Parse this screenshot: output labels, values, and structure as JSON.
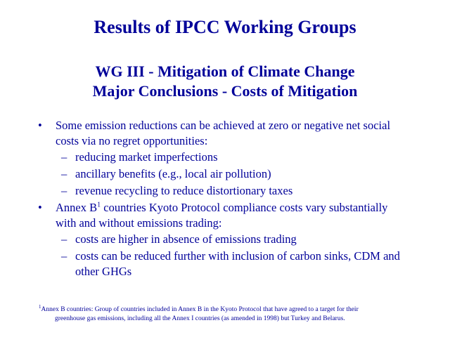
{
  "slide": {
    "title": "Results of IPCC Working Groups",
    "subtitle_line1": "WG III - Mitigation of Climate Change",
    "subtitle_line2": "Major Conclusions - Costs of Mitigation",
    "bullets": [
      {
        "text": "Some emission reductions can be achieved at zero or negative net social costs via no regret opportunities:",
        "subs": [
          "reducing market imperfections",
          "ancillary benefits (e.g., local air pollution)",
          "revenue recycling to reduce distortionary taxes"
        ]
      },
      {
        "text_before": "Annex B",
        "superscript": "1",
        "text_after": " countries Kyoto Protocol compliance costs vary substantially with and without emissions trading:",
        "subs": [
          "costs are higher in absence of emissions trading",
          "costs can be reduced further with inclusion of carbon sinks, CDM and other GHGs"
        ]
      }
    ],
    "bullet_glyph": "•",
    "sub_glyph": "–",
    "footnote": {
      "marker": "1",
      "line1": "Annex B countries: Group of countries included in Annex B in the Kyoto Protocol that have agreed to a target for their",
      "line2": "greenhouse gas emissions, including all the Annex I countries (as amended in 1998) but Turkey and Belarus."
    },
    "colors": {
      "text": "#000099",
      "background": "#ffffff"
    }
  }
}
